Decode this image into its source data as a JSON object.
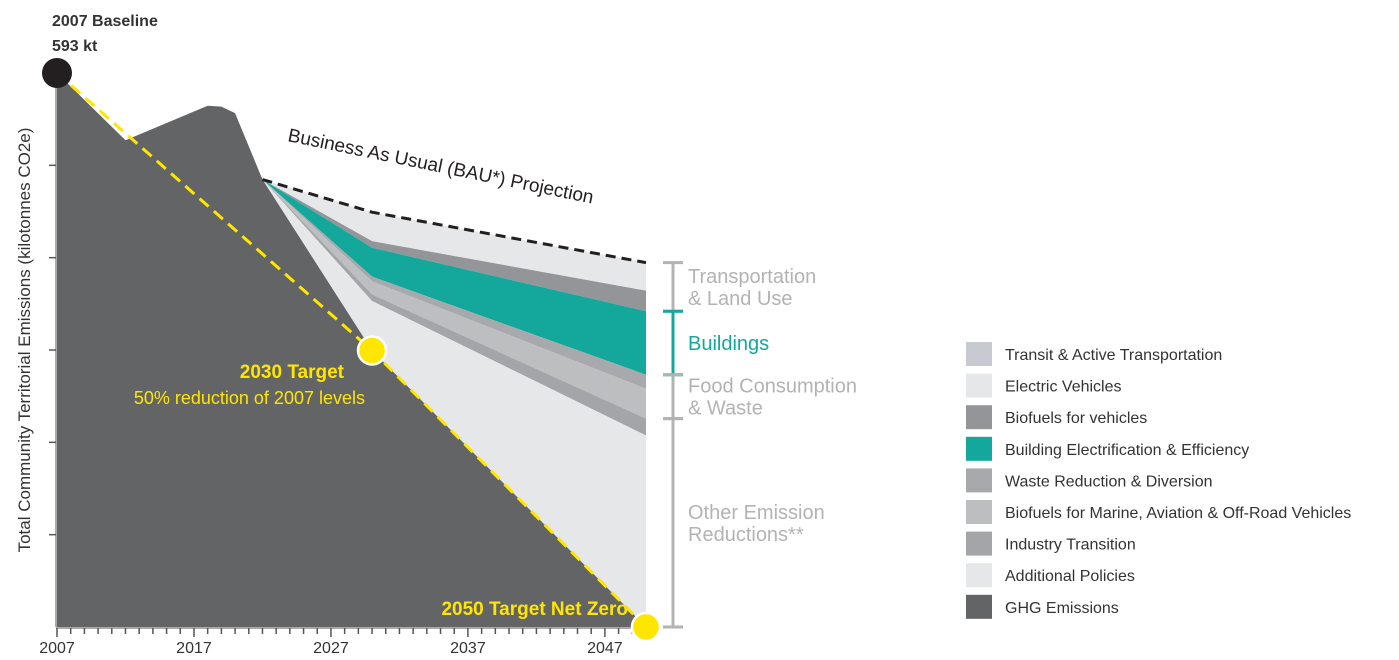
{
  "chart_data": {
    "type": "area",
    "ylabel": "Total Community Territorial Emissions (kilotonnes  CO2e)",
    "x_ticks": [
      "2007",
      "2017",
      "2027",
      "2037",
      "2047"
    ],
    "xlim": [
      2007,
      2050
    ],
    "ylim": [
      0,
      593
    ],
    "baseline": {
      "title": "2007 Baseline",
      "value_label": "593 kt",
      "year": 2007,
      "value": 593,
      "color": "#231f20"
    },
    "target_2030": {
      "title": "2030 Target",
      "subtitle": "50% reduction of 2007 levels",
      "year": 2030,
      "value": 296,
      "color": "#ffe600"
    },
    "target_2050": {
      "title": "2050 Target Net Zero",
      "year": 2050,
      "value": 0,
      "color": "#ffe600"
    },
    "bau_label": "Business As Usual (BAU*) Projection",
    "bau": {
      "x": [
        2022,
        2030,
        2050
      ],
      "y": [
        479,
        444,
        390
      ]
    },
    "ghg_emissions": {
      "x": [
        2007,
        2012,
        2018,
        2019,
        2020,
        2022
      ],
      "y": [
        593,
        521,
        558,
        557,
        550,
        479
      ]
    },
    "target_line": {
      "x": [
        2007,
        2030,
        2050
      ],
      "y": [
        593,
        296,
        0
      ]
    },
    "series": [
      {
        "name": "Transit & Active Transportation",
        "color": "#c7cbd1",
        "x": [
          2022,
          2030,
          2050
        ],
        "top": [
          479,
          444,
          390
        ],
        "bottom": [
          479,
          444,
          390
        ]
      },
      {
        "name": "Electric Vehicles",
        "color": "#e6e7e8",
        "x": [
          2022,
          2030,
          2050
        ],
        "top": [
          479,
          444,
          390
        ],
        "bottom": [
          479,
          413,
          360
        ]
      },
      {
        "name": "Biofuels for vehicles",
        "color": "#939598",
        "x": [
          2022,
          2030,
          2050
        ],
        "top": [
          479,
          413,
          360
        ],
        "bottom": [
          479,
          406,
          338
        ]
      },
      {
        "name": "Building Electrification & Efficiency",
        "color": "#14a89c",
        "x": [
          2022,
          2030,
          2050
        ],
        "top": [
          479,
          406,
          338
        ],
        "bottom": [
          479,
          375,
          270
        ]
      },
      {
        "name": "Waste Reduction & Diversion",
        "color": "#a7a9ac",
        "x": [
          2022,
          2030,
          2050
        ],
        "top": [
          479,
          375,
          270
        ],
        "bottom": [
          479,
          370,
          255
        ]
      },
      {
        "name": "Biofuels for Marine, Aviation & Off-Road Vehicles",
        "color": "#bcbec0",
        "x": [
          2022,
          2030,
          2050
        ],
        "top": [
          479,
          370,
          255
        ],
        "bottom": [
          479,
          356,
          223
        ]
      },
      {
        "name": "Industry Transition",
        "color": "#a3a5a8",
        "x": [
          2022,
          2030,
          2050
        ],
        "top": [
          479,
          356,
          223
        ],
        "bottom": [
          479,
          349,
          205
        ]
      },
      {
        "name": "Additional Policies",
        "color": "#e6e7e8",
        "x": [
          2022,
          2030,
          2050
        ],
        "top": [
          479,
          349,
          205
        ],
        "bottom": [
          479,
          296,
          0
        ]
      },
      {
        "name": "GHG Emissions",
        "color": "#636466",
        "x": [
          2007,
          2030,
          2050
        ],
        "top": [
          593,
          296,
          0
        ],
        "bottom": [
          0,
          0,
          0
        ]
      }
    ],
    "sectors": [
      {
        "label_lines": [
          "Transportation",
          "& Land Use"
        ],
        "color": "#b3b3b3",
        "top": 390,
        "bottom": 338
      },
      {
        "label_lines": [
          "Buildings"
        ],
        "color": "#14a89c",
        "top": 338,
        "bottom": 270
      },
      {
        "label_lines": [
          "Food Consumption",
          "& Waste"
        ],
        "color": "#b3b3b3",
        "top": 270,
        "bottom": 223
      },
      {
        "label_lines": [
          "Other Emission",
          "Reductions**"
        ],
        "color": "#b3b3b3",
        "top": 223,
        "bottom": 0
      }
    ]
  }
}
